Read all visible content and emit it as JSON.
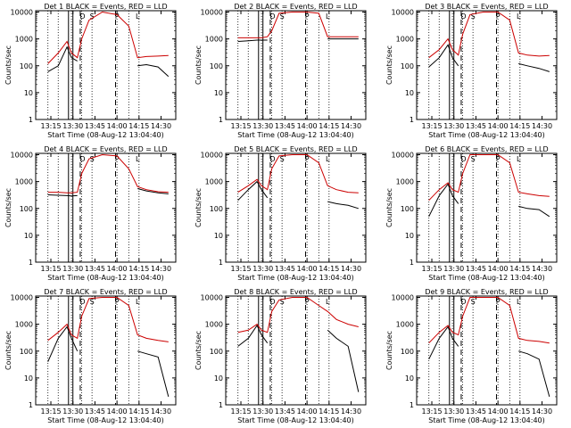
{
  "colors": {
    "events": "#000000",
    "lld": "#cc0000",
    "frame": "#000000"
  },
  "chart_data": [
    {
      "type": "line",
      "title": "Det 1  BLACK = Events, RED = LLD",
      "xlabel": "Start Time (08-Aug-12 13:04:40)",
      "ylabel": "Counts/sec",
      "y_scale": "log",
      "ylim": [
        1,
        10000
      ],
      "xlim": [
        "13:04:40",
        "14:40:00"
      ],
      "x_ticks": [
        "13:15",
        "13:30",
        "13:45",
        "14:00",
        "14:15",
        "14:30"
      ],
      "y_ticks": [
        "1",
        "10",
        "100",
        "1000",
        "10000"
      ],
      "markers": [
        "D",
        "S",
        "P",
        "L"
      ],
      "x": [
        "13:13",
        "13:20",
        "13:26",
        "13:29",
        "13:33",
        "13:36",
        "13:41",
        "13:50",
        "14:00",
        "14:08",
        "14:14",
        "14:20",
        "14:28",
        "14:35"
      ],
      "series": [
        {
          "name": "Events",
          "values": [
            60,
            100,
            500,
            200,
            150,
            null,
            null,
            null,
            null,
            null,
            100,
            110,
            90,
            40
          ]
        },
        {
          "name": "LLD",
          "values": [
            120,
            300,
            800,
            300,
            200,
            1000,
            5000,
            10000,
            8000,
            3000,
            200,
            220,
            230,
            240
          ]
        }
      ]
    },
    {
      "type": "line",
      "title": "Det 2  BLACK = Events, RED = LLD",
      "xlabel": "Start Time (08-Aug-12 13:04:40)",
      "ylabel": "Counts/sec",
      "y_scale": "log",
      "ylim": [
        1,
        10000
      ],
      "xlim": [
        "13:04:40",
        "14:40:00"
      ],
      "x_ticks": [
        "13:15",
        "13:30",
        "13:45",
        "14:00",
        "14:15",
        "14:30"
      ],
      "y_ticks": [
        "1",
        "10",
        "100",
        "1000",
        "10000"
      ],
      "markers": [
        "D",
        "S",
        "P",
        "L"
      ],
      "x": [
        "13:13",
        "13:20",
        "13:26",
        "13:29",
        "13:33",
        "13:36",
        "13:41",
        "13:50",
        "14:00",
        "14:08",
        "14:14",
        "14:20",
        "14:28",
        "14:35"
      ],
      "series": [
        {
          "name": "Events",
          "values": [
            800,
            850,
            900,
            900,
            900,
            null,
            null,
            null,
            null,
            null,
            1000,
            1000,
            1000,
            1000
          ]
        },
        {
          "name": "LLD",
          "values": [
            1100,
            1100,
            1100,
            1100,
            1200,
            2000,
            9000,
            10000,
            10000,
            9000,
            1200,
            1200,
            1200,
            1200
          ]
        }
      ]
    },
    {
      "type": "line",
      "title": "Det 3  BLACK = Events, RED = LLD",
      "xlabel": "Start Time (08-Aug-12 13:04:40)",
      "ylabel": "Counts/sec",
      "y_scale": "log",
      "ylim": [
        1,
        10000
      ],
      "xlim": [
        "13:04:40",
        "14:40:00"
      ],
      "x_ticks": [
        "13:15",
        "13:30",
        "13:45",
        "14:00",
        "14:15",
        "14:30"
      ],
      "y_ticks": [
        "1",
        "10",
        "100",
        "1000",
        "10000"
      ],
      "markers": [
        "D",
        "S",
        "P",
        "L"
      ],
      "x": [
        "13:13",
        "13:20",
        "13:26",
        "13:29",
        "13:33",
        "13:36",
        "13:41",
        "13:50",
        "14:00",
        "14:08",
        "14:14",
        "14:20",
        "14:28",
        "14:35"
      ],
      "series": [
        {
          "name": "Events",
          "values": [
            90,
            200,
            600,
            200,
            100,
            null,
            null,
            null,
            null,
            null,
            120,
            100,
            80,
            60
          ]
        },
        {
          "name": "LLD",
          "values": [
            200,
            400,
            1000,
            400,
            250,
            1500,
            8000,
            10000,
            10000,
            5000,
            300,
            250,
            230,
            240
          ]
        }
      ]
    },
    {
      "type": "line",
      "title": "Det 4  BLACK = Events, RED = LLD",
      "xlabel": "Start Time (08-Aug-12 13:04:40)",
      "ylabel": "Counts/sec",
      "y_scale": "log",
      "ylim": [
        1,
        10000
      ],
      "xlim": [
        "13:04:40",
        "14:40:00"
      ],
      "x_ticks": [
        "13:15",
        "13:30",
        "13:45",
        "14:00",
        "14:15",
        "14:30"
      ],
      "y_ticks": [
        "1",
        "10",
        "100",
        "1000",
        "10000"
      ],
      "markers": [
        "D",
        "S",
        "P",
        "L"
      ],
      "x": [
        "13:13",
        "13:20",
        "13:26",
        "13:29",
        "13:33",
        "13:36",
        "13:41",
        "13:50",
        "14:00",
        "14:08",
        "14:14",
        "14:20",
        "14:28",
        "14:35"
      ],
      "series": [
        {
          "name": "Events",
          "values": [
            320,
            310,
            300,
            290,
            300,
            null,
            null,
            null,
            null,
            null,
            550,
            450,
            380,
            350
          ]
        },
        {
          "name": "LLD",
          "values": [
            400,
            400,
            380,
            380,
            400,
            2000,
            7000,
            10000,
            9000,
            3000,
            650,
            500,
            420,
            400
          ]
        }
      ]
    },
    {
      "type": "line",
      "title": "Det 5  BLACK = Events, RED = LLD",
      "xlabel": "Start Time (08-Aug-12 13:04:40)",
      "ylabel": "Counts/sec",
      "y_scale": "log",
      "ylim": [
        1,
        10000
      ],
      "xlim": [
        "13:04:40",
        "14:40:00"
      ],
      "x_ticks": [
        "13:15",
        "13:30",
        "13:45",
        "14:00",
        "14:15",
        "14:30"
      ],
      "y_ticks": [
        "1",
        "10",
        "100",
        "1000",
        "10000"
      ],
      "markers": [
        "D",
        "S",
        "P",
        "L"
      ],
      "x": [
        "13:13",
        "13:20",
        "13:26",
        "13:29",
        "13:33",
        "13:36",
        "13:41",
        "13:50",
        "14:00",
        "14:08",
        "14:14",
        "14:20",
        "14:28",
        "14:35"
      ],
      "series": [
        {
          "name": "Events",
          "values": [
            200,
            500,
            1000,
            500,
            250,
            null,
            null,
            null,
            null,
            null,
            180,
            150,
            130,
            100
          ]
        },
        {
          "name": "LLD",
          "values": [
            400,
            700,
            1200,
            700,
            500,
            3000,
            9000,
            10000,
            10000,
            5000,
            700,
            500,
            400,
            380
          ]
        }
      ]
    },
    {
      "type": "line",
      "title": "Det 6  BLACK = Events, RED = LLD",
      "xlabel": "Start Time (08-Aug-12 13:04:40)",
      "ylabel": "Counts/sec",
      "y_scale": "log",
      "ylim": [
        1,
        10000
      ],
      "xlim": [
        "13:04:40",
        "14:40:00"
      ],
      "x_ticks": [
        "13:15",
        "13:30",
        "13:45",
        "14:00",
        "14:15",
        "14:30"
      ],
      "y_ticks": [
        "1",
        "10",
        "100",
        "1000",
        "10000"
      ],
      "markers": [
        "D",
        "S",
        "P",
        "L"
      ],
      "x": [
        "13:13",
        "13:20",
        "13:26",
        "13:29",
        "13:33",
        "13:36",
        "13:41",
        "13:50",
        "14:00",
        "14:08",
        "14:14",
        "14:20",
        "14:28",
        "14:35"
      ],
      "series": [
        {
          "name": "Events",
          "values": [
            50,
            300,
            800,
            300,
            150,
            null,
            null,
            null,
            null,
            null,
            120,
            100,
            90,
            50
          ]
        },
        {
          "name": "LLD",
          "values": [
            200,
            500,
            900,
            500,
            400,
            2000,
            10000,
            10000,
            10000,
            5000,
            400,
            350,
            300,
            280
          ]
        }
      ]
    },
    {
      "type": "line",
      "title": "Det 7  BLACK = Events, RED = LLD",
      "xlabel": "Start Time (08-Aug-12 13:04:40)",
      "ylabel": "Counts/sec",
      "y_scale": "log",
      "ylim": [
        1,
        10000
      ],
      "xlim": [
        "13:04:40",
        "14:40:00"
      ],
      "x_ticks": [
        "13:15",
        "13:30",
        "13:45",
        "14:00",
        "14:15",
        "14:30"
      ],
      "y_ticks": [
        "1",
        "10",
        "100",
        "1000",
        "10000"
      ],
      "markers": [
        "D",
        "S",
        "P",
        "L"
      ],
      "x": [
        "13:13",
        "13:20",
        "13:26",
        "13:29",
        "13:33",
        "13:36",
        "13:41",
        "13:50",
        "14:00",
        "14:08",
        "14:14",
        "14:20",
        "14:28",
        "14:35"
      ],
      "series": [
        {
          "name": "Events",
          "values": [
            40,
            300,
            800,
            300,
            100,
            null,
            null,
            null,
            null,
            null,
            100,
            80,
            60,
            2
          ]
        },
        {
          "name": "LLD",
          "values": [
            250,
            500,
            1000,
            400,
            300,
            2000,
            9000,
            10000,
            10000,
            5000,
            400,
            300,
            250,
            220
          ]
        }
      ]
    },
    {
      "type": "line",
      "title": "Det 8  BLACK = Events, RED = LLD",
      "xlabel": "Start Time (08-Aug-12 13:04:40)",
      "ylabel": "Counts/sec",
      "y_scale": "log",
      "ylim": [
        1,
        10000
      ],
      "xlim": [
        "13:04:40",
        "14:40:00"
      ],
      "x_ticks": [
        "13:15",
        "13:30",
        "13:45",
        "14:00",
        "14:15",
        "14:30"
      ],
      "y_ticks": [
        "1",
        "10",
        "100",
        "1000",
        "10000"
      ],
      "markers": [
        "D",
        "S",
        "P",
        "L"
      ],
      "x": [
        "13:13",
        "13:20",
        "13:26",
        "13:29",
        "13:33",
        "13:36",
        "13:41",
        "13:50",
        "14:00",
        "14:08",
        "14:14",
        "14:20",
        "14:28",
        "14:35"
      ],
      "series": [
        {
          "name": "Events",
          "values": [
            150,
            300,
            900,
            400,
            200,
            null,
            null,
            null,
            null,
            null,
            600,
            300,
            150,
            3
          ]
        },
        {
          "name": "LLD",
          "values": [
            500,
            600,
            1000,
            600,
            500,
            3000,
            8000,
            10000,
            10000,
            5000,
            3000,
            1500,
            1000,
            800
          ]
        }
      ]
    },
    {
      "type": "line",
      "title": "Det 9  BLACK = Events, RED = LLD",
      "xlabel": "Start Time (08-Aug-12 13:04:40)",
      "ylabel": "Counts/sec",
      "y_scale": "log",
      "ylim": [
        1,
        10000
      ],
      "xlim": [
        "13:04:40",
        "14:40:00"
      ],
      "x_ticks": [
        "13:15",
        "13:30",
        "13:45",
        "14:00",
        "14:15",
        "14:30"
      ],
      "y_ticks": [
        "1",
        "10",
        "100",
        "1000",
        "10000"
      ],
      "markers": [
        "D",
        "S",
        "P",
        "L"
      ],
      "x": [
        "13:13",
        "13:20",
        "13:26",
        "13:29",
        "13:33",
        "13:36",
        "13:41",
        "13:50",
        "14:00",
        "14:08",
        "14:14",
        "14:20",
        "14:28",
        "14:35"
      ],
      "series": [
        {
          "name": "Events",
          "values": [
            50,
            300,
            800,
            300,
            150,
            null,
            null,
            null,
            null,
            null,
            100,
            80,
            50,
            2
          ]
        },
        {
          "name": "LLD",
          "values": [
            200,
            500,
            900,
            500,
            400,
            2000,
            10000,
            10000,
            10000,
            5000,
            300,
            250,
            230,
            200
          ]
        }
      ]
    }
  ]
}
